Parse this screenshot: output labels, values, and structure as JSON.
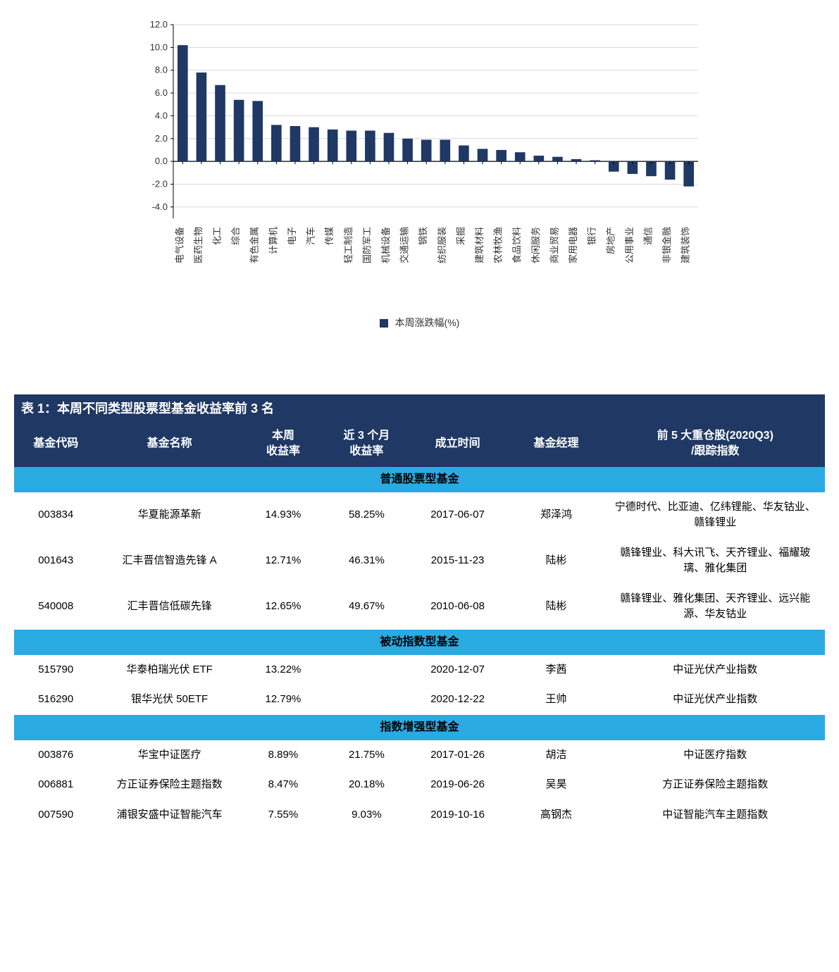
{
  "chart": {
    "type": "bar",
    "legend_label": "本周涨跌幅(%)",
    "bar_color": "#1f3864",
    "axis_color": "#000000",
    "grid_color": "#d9d9d9",
    "background_color": "#ffffff",
    "label_color": "#333333",
    "ylim": [
      -5,
      12
    ],
    "yticks": [
      -4.0,
      -2.0,
      0.0,
      2.0,
      4.0,
      6.0,
      8.0,
      10.0,
      12.0
    ],
    "ytick_labels": [
      "-4.0",
      "-2.0",
      "0.0",
      "2.0",
      "4.0",
      "6.0",
      "8.0",
      "10.0",
      "12.0"
    ],
    "tick_fontsize": 13,
    "xlabel_fontsize": 13,
    "categories": [
      "电气设备",
      "医药生物",
      "化工",
      "综合",
      "有色金属",
      "计算机",
      "电子",
      "汽车",
      "传媒",
      "轻工制造",
      "国防军工",
      "机械设备",
      "交通运输",
      "钢铁",
      "纺织服装",
      "采掘",
      "建筑材料",
      "农林牧渔",
      "食品饮料",
      "休闲服务",
      "商业贸易",
      "家用电器",
      "银行",
      "房地产",
      "公用事业",
      "通信",
      "非银金融",
      "建筑装饰"
    ],
    "values": [
      10.2,
      7.8,
      6.7,
      5.4,
      5.3,
      3.2,
      3.1,
      3.0,
      2.8,
      2.7,
      2.7,
      2.5,
      2.0,
      1.9,
      1.9,
      1.4,
      1.1,
      1.0,
      0.8,
      0.5,
      0.4,
      0.2,
      0.1,
      -0.9,
      -1.1,
      -1.3,
      -1.6,
      -2.2
    ],
    "bar_width_ratio": 0.55
  },
  "table": {
    "title": "表 1：本周不同类型股票型基金收益率前 3 名",
    "header_bg": "#1f3864",
    "header_fg": "#ffffff",
    "section_bg": "#29abe2",
    "columns": [
      {
        "key": "code",
        "label": "基金代码"
      },
      {
        "key": "name",
        "label": "基金名称"
      },
      {
        "key": "wret",
        "label": "本周\n收益率"
      },
      {
        "key": "m3ret",
        "label": "近 3 个月\n收益率"
      },
      {
        "key": "date",
        "label": "成立时间"
      },
      {
        "key": "mgr",
        "label": "基金经理"
      },
      {
        "key": "hold",
        "label": "前 5 大重仓股(2020Q3)\n/跟踪指数"
      }
    ],
    "sections": [
      {
        "title": "普通股票型基金",
        "rows": [
          {
            "code": "003834",
            "name": "华夏能源革新",
            "wret": "14.93%",
            "m3ret": "58.25%",
            "date": "2017-06-07",
            "mgr": "郑泽鸿",
            "hold": "宁德时代、比亚迪、亿纬锂能、华友钴业、赣锋锂业"
          },
          {
            "code": "001643",
            "name": "汇丰晋信智造先锋 A",
            "wret": "12.71%",
            "m3ret": "46.31%",
            "date": "2015-11-23",
            "mgr": "陆彬",
            "hold": "赣锋锂业、科大讯飞、天齐锂业、福耀玻璃、雅化集团"
          },
          {
            "code": "540008",
            "name": "汇丰晋信低碳先锋",
            "wret": "12.65%",
            "m3ret": "49.67%",
            "date": "2010-06-08",
            "mgr": "陆彬",
            "hold": "赣锋锂业、雅化集团、天齐锂业、远兴能源、华友钴业"
          }
        ]
      },
      {
        "title": "被动指数型基金",
        "rows": [
          {
            "code": "515790",
            "name": "华泰柏瑞光伏 ETF",
            "wret": "13.22%",
            "m3ret": "",
            "date": "2020-12-07",
            "mgr": "李茜",
            "hold": "中证光伏产业指数"
          },
          {
            "code": "516290",
            "name": "银华光伏 50ETF",
            "wret": "12.79%",
            "m3ret": "",
            "date": "2020-12-22",
            "mgr": "王帅",
            "hold": "中证光伏产业指数"
          }
        ]
      },
      {
        "title": "指数增强型基金",
        "rows": [
          {
            "code": "003876",
            "name": "华宝中证医疗",
            "wret": "8.89%",
            "m3ret": "21.75%",
            "date": "2017-01-26",
            "mgr": "胡洁",
            "hold": "中证医疗指数"
          },
          {
            "code": "006881",
            "name": "方正证券保险主题指数",
            "wret": "8.47%",
            "m3ret": "20.18%",
            "date": "2019-06-26",
            "mgr": "吴昊",
            "hold": "方正证券保险主题指数"
          },
          {
            "code": "007590",
            "name": "浦银安盛中证智能汽车",
            "wret": "7.55%",
            "m3ret": "9.03%",
            "date": "2019-10-16",
            "mgr": "高钢杰",
            "hold": "中证智能汽车主题指数"
          }
        ]
      }
    ]
  }
}
